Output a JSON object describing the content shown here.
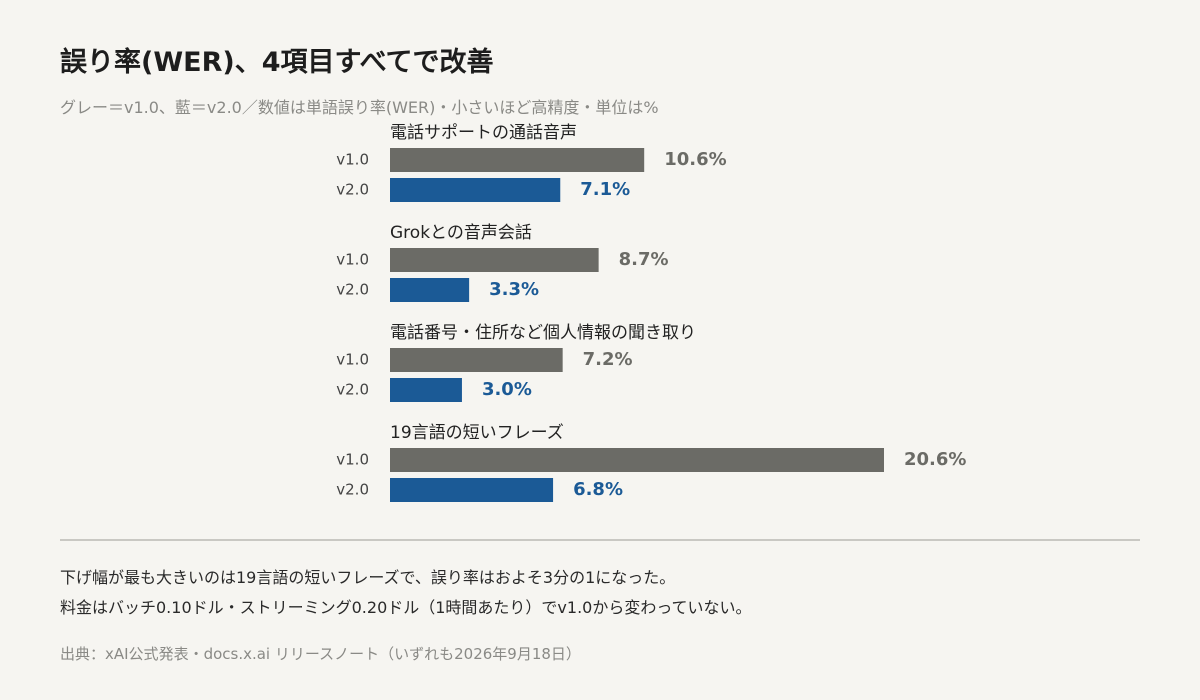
{
  "title": "誤り率(WER)、4項目すべてで改善",
  "subtitle": "グレー＝v1.0、藍＝v2.0／数値は単語誤り率(WER)・小さいほど高精度・単位は%",
  "colors": {
    "v1": "#6b6b66",
    "v2": "#1b5a96",
    "label_v1": "#6b6b66",
    "label_v2": "#1b5a96"
  },
  "chart_data": {
    "type": "bar",
    "orientation": "horizontal",
    "categories": [
      "電話サポートの通話音声",
      "Grokとの音声会話",
      "電話番号・住所など個人情報の聞き取り",
      "19言語の短いフレーズ"
    ],
    "series": [
      {
        "name": "v1.0",
        "values": [
          10.6,
          8.7,
          7.2,
          20.6
        ],
        "labels": [
          "10.6%",
          "8.7%",
          "7.2%",
          "20.6%"
        ]
      },
      {
        "name": "v2.0",
        "values": [
          7.1,
          3.3,
          3.0,
          6.8
        ],
        "labels": [
          "7.1%",
          "3.3%",
          "3.0%",
          "6.8%"
        ]
      }
    ],
    "unit": "%",
    "xlim": [
      0,
      20.6
    ],
    "grid": false,
    "legend": "none"
  },
  "notes": [
    "下げ幅が最も大きいのは19言語の短いフレーズで、誤り率はおよそ3分の1になった。",
    "料金はバッチ0.10ドル・ストリーミング0.20ドル（1時間あたり）でv1.0から変わっていない。"
  ],
  "source": "出典：xAI公式発表・docs.x.ai リリースノート（いずれも2026年9月18日）"
}
